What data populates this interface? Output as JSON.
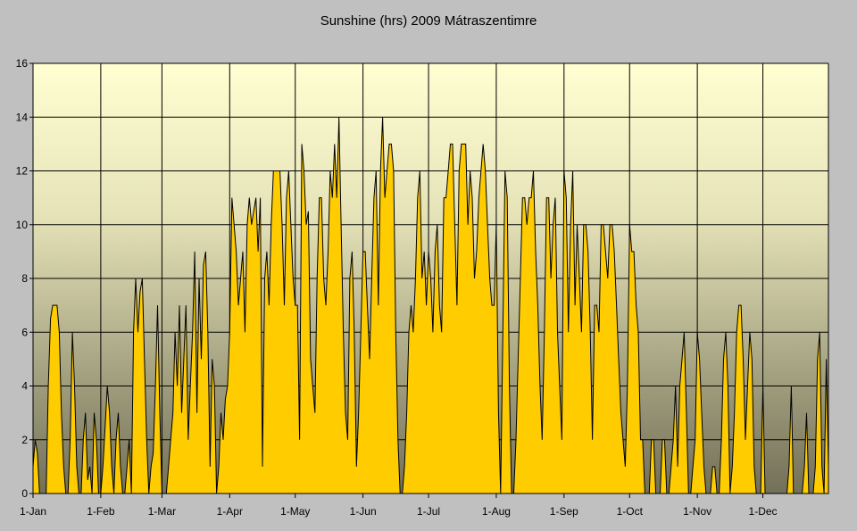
{
  "chart_data": {
    "type": "area",
    "title": "Sunshine (hrs) 2009 Mátraszentimre",
    "xlabel": "",
    "ylabel": "",
    "ylim": [
      0,
      16
    ],
    "yticks": [
      0,
      2,
      4,
      6,
      8,
      10,
      12,
      14,
      16
    ],
    "xtick_labels": [
      "1-Jan",
      "1-Feb",
      "1-Mar",
      "1-Apr",
      "1-May",
      "1-Jun",
      "1-Jul",
      "1-Aug",
      "1-Sep",
      "1-Oct",
      "1-Nov",
      "1-Dec"
    ],
    "xtick_days": [
      0,
      31,
      59,
      90,
      120,
      151,
      181,
      212,
      243,
      273,
      304,
      334
    ],
    "grid": true,
    "fill_color": "#FFCC00",
    "line_color": "#000000",
    "series": [
      {
        "name": "Sunshine (hrs)",
        "values": [
          1,
          2,
          1.5,
          0,
          0,
          0,
          0,
          4,
          6.5,
          7,
          7,
          7,
          6,
          3,
          1,
          0,
          0,
          2,
          6,
          4,
          1,
          0,
          0,
          2,
          3,
          0.5,
          1,
          0,
          3,
          2,
          0,
          0,
          1,
          2.5,
          4,
          3,
          1,
          0,
          2,
          3,
          1,
          0,
          0,
          1,
          2,
          0,
          6,
          8,
          6,
          7.5,
          8,
          5,
          2,
          0,
          1,
          1.5,
          4,
          7,
          3,
          0,
          0,
          0,
          1,
          2,
          3,
          6,
          4,
          7,
          3,
          5,
          7,
          2,
          4,
          6,
          9,
          3,
          8,
          5,
          8.5,
          9,
          6,
          1,
          5,
          4,
          0,
          1,
          3,
          2,
          3.5,
          4,
          6,
          11,
          10,
          9,
          7,
          8,
          9,
          6,
          10,
          11,
          10,
          10.5,
          11,
          9,
          11,
          1,
          8,
          9,
          7,
          10,
          12,
          12,
          12,
          12,
          10,
          7,
          11,
          12,
          10,
          8,
          7,
          7,
          2,
          13,
          12,
          10,
          10.5,
          5,
          4,
          3,
          8,
          11,
          11,
          8,
          7,
          9,
          12,
          11,
          13,
          11,
          14,
          10,
          6,
          3,
          2,
          8,
          9,
          6,
          1,
          3,
          6,
          9,
          9,
          7,
          5,
          8,
          11,
          12,
          7,
          12,
          14,
          11,
          12,
          13,
          13,
          12,
          6,
          2,
          0,
          0,
          1,
          3,
          6,
          7,
          6,
          8,
          11,
          12,
          8,
          9,
          7,
          9,
          8,
          6,
          9,
          10,
          7,
          6,
          11,
          11,
          12,
          13,
          13,
          10,
          7,
          12,
          13,
          13,
          13,
          10,
          12,
          11,
          8,
          9,
          11,
          12,
          13,
          12,
          10,
          8,
          7,
          7,
          10,
          3,
          0,
          6,
          12,
          11,
          4,
          0,
          0,
          2,
          5,
          8,
          11,
          11,
          10,
          11,
          11,
          12,
          9,
          7,
          4,
          2,
          6,
          11,
          11,
          8,
          10,
          11,
          6,
          4,
          2,
          12,
          11,
          6,
          10,
          12,
          7,
          10,
          8,
          6,
          10,
          10,
          9,
          6,
          2,
          7,
          7,
          6,
          10,
          10,
          9,
          8,
          10,
          10,
          9,
          7,
          5,
          3,
          2,
          1,
          4,
          10,
          9,
          9,
          7,
          6,
          2,
          2,
          0,
          0,
          0,
          2,
          2,
          0,
          0,
          0,
          2,
          2,
          0,
          0,
          1,
          2,
          4,
          1,
          4,
          5,
          6,
          3,
          0,
          0,
          1,
          2,
          6,
          5,
          3,
          1,
          0,
          0,
          0,
          1,
          1,
          0,
          0,
          2,
          5,
          6,
          4,
          0,
          1,
          3,
          6,
          7,
          7,
          5,
          2,
          4,
          6,
          5,
          1,
          0,
          0,
          0,
          4,
          0,
          0,
          0,
          0,
          0,
          0,
          0,
          0,
          0,
          0,
          0,
          1,
          4,
          0,
          0,
          0,
          0,
          0,
          1,
          3,
          0,
          0,
          0,
          1,
          5,
          6,
          1,
          0,
          5,
          1
        ]
      }
    ]
  }
}
